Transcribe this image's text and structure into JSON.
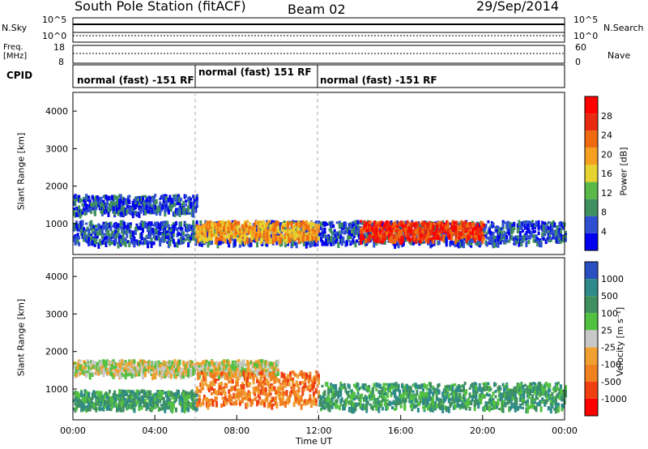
{
  "header": {
    "title": "South Pole Station (fitACF)",
    "beam": "Beam 02",
    "date": "29/Sep/2014"
  },
  "top_panels": {
    "nsky_label": "N.Sky",
    "nsearch_label": "N.Search",
    "noise_ticks_left": [
      "10^5",
      "10^0"
    ],
    "noise_ticks_right": [
      "10^5",
      "10^0"
    ],
    "freq_label_line1": "Freq.",
    "freq_label_line2": "[MHz]",
    "freq_ticks": [
      "18",
      "8"
    ],
    "nave_label": "Nave",
    "nave_ticks": [
      "60",
      "0"
    ],
    "cpid_label": "CPID",
    "cpid_segments": [
      {
        "text": "normal (fast) -151 RF",
        "start_hour": 0,
        "end_hour": 6
      },
      {
        "text": "normal (fast) 151 RF",
        "start_hour": 6,
        "end_hour": 12
      },
      {
        "text": "normal (fast) -151 RF",
        "start_hour": 12,
        "end_hour": 24
      }
    ]
  },
  "chart_data": [
    {
      "type": "heatmap",
      "name": "power",
      "ylabel": "Slant Range [km]",
      "ylim": [
        180,
        4500
      ],
      "yticks": [
        1000,
        2000,
        3000,
        4000
      ],
      "x_range_hours": [
        0,
        24
      ],
      "colorbar_label": "Power [dB]",
      "colorbar_ticks": [
        "28",
        "24",
        "20",
        "16",
        "12",
        "8",
        "4"
      ],
      "colors": [
        "#0000ee",
        "#2f4fd0",
        "#3f8f5f",
        "#5ab848",
        "#e6d230",
        "#f5a020",
        "#ef6a10",
        "#e82a10",
        "#ff0000"
      ],
      "features": [
        {
          "t0": 0,
          "t1": 24,
          "r0": 500,
          "r1": 1100,
          "level": 1
        },
        {
          "t0": 0,
          "t1": 6,
          "r0": 1300,
          "r1": 1800,
          "level": 1
        },
        {
          "t0": 6,
          "t1": 12,
          "r0": 600,
          "r1": 1100,
          "level": 5
        },
        {
          "t0": 14,
          "t1": 20,
          "r0": 600,
          "r1": 1100,
          "level": 7
        }
      ]
    },
    {
      "type": "heatmap",
      "name": "velocity",
      "ylabel": "Slant Range [km]",
      "xlabel": "Time UT",
      "ylim": [
        180,
        4500
      ],
      "yticks": [
        1000,
        2000,
        3000,
        4000
      ],
      "x_range_hours": [
        0,
        24
      ],
      "xticks": [
        "00:00",
        "04:00",
        "08:00",
        "12:00",
        "16:00",
        "20:00",
        "00:00"
      ],
      "colorbar_label": "Velocity [m s⁻¹]",
      "colorbar_ticks": [
        "1000",
        "500",
        "100",
        "25",
        "-25",
        "-100",
        "-500",
        "-1000"
      ],
      "colors": [
        "#2a4fc0",
        "#2e8a8a",
        "#3f8f5f",
        "#52c040",
        "#c8c8c8",
        "#f0a030",
        "#f08020",
        "#f04010",
        "#ff0000"
      ],
      "features": [
        {
          "t0": 0,
          "t1": 6,
          "r0": 500,
          "r1": 1000,
          "level": 2
        },
        {
          "t0": 0,
          "t1": 10,
          "r0": 1400,
          "r1": 1800,
          "level": 4
        },
        {
          "t0": 6,
          "t1": 12,
          "r0": 600,
          "r1": 1500,
          "level": 6
        },
        {
          "t0": 12,
          "t1": 24,
          "r0": 500,
          "r1": 1200,
          "level": 2
        }
      ]
    }
  ]
}
